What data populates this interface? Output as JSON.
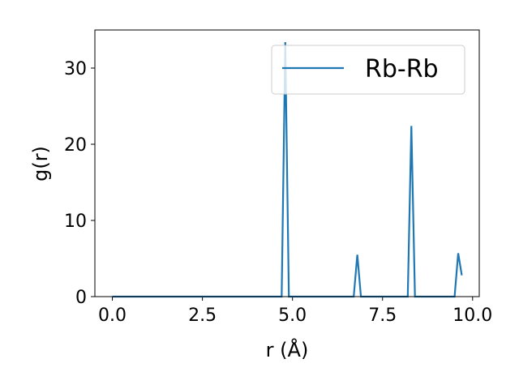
{
  "chart_data": {
    "type": "line",
    "x_label": "r (Å)",
    "y_label": "g(r)",
    "x": [
      0,
      4.7,
      4.8,
      4.9,
      6.7,
      6.8,
      6.9,
      8.2,
      8.3,
      8.4,
      9.5,
      9.6,
      9.7
    ],
    "series": [
      {
        "name": "Rb-Rb",
        "color": "#1f77b4",
        "values": [
          0,
          0,
          33.4,
          0,
          0,
          5.5,
          0,
          0,
          22.4,
          0,
          0,
          5.7,
          2.8
        ]
      }
    ],
    "xlim": [
      -0.485,
      10.185
    ],
    "xticks": [
      {
        "value": 0,
        "label": "0.0"
      },
      2.5,
      {
        "value": 5,
        "label": "5.0"
      },
      7.5,
      {
        "value": 10,
        "label": "10.0"
      }
    ],
    "ylim": [
      0,
      35
    ],
    "yticks": [
      0,
      10,
      20,
      30
    ],
    "legend": "upper right"
  }
}
